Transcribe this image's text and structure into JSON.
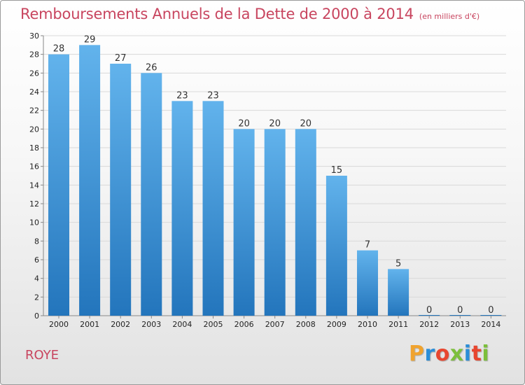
{
  "title": "Remboursements Annuels de la Dette de 2000 à 2014",
  "title_unit": "(en milliers d'€)",
  "city": "ROYE",
  "logo": {
    "text": "Proxiti",
    "letter_colors": [
      "#f0a32e",
      "#2b8ed8",
      "#e8462f",
      "#7cbf3b",
      "#2b8ed8",
      "#e8462f",
      "#7cbf3b"
    ]
  },
  "colors": {
    "title": "#c8455f",
    "bar_top": "#62b3ec",
    "bar_bottom": "#2375bc",
    "grid": "#d9d9d9",
    "axis_text": "#222222"
  },
  "chart_data": {
    "type": "bar",
    "categories": [
      "2000",
      "2001",
      "2002",
      "2003",
      "2004",
      "2005",
      "2006",
      "2007",
      "2008",
      "2009",
      "2010",
      "2011",
      "2012",
      "2013",
      "2014"
    ],
    "values": [
      28,
      29,
      27,
      26,
      23,
      23,
      20,
      20,
      20,
      15,
      7,
      5,
      0,
      0,
      0
    ],
    "title": "Remboursements Annuels de la Dette de 2000 à 2014",
    "xlabel": "",
    "ylabel": "",
    "ylim": [
      0,
      30
    ],
    "yticks": [
      0,
      2,
      4,
      6,
      8,
      10,
      12,
      14,
      16,
      18,
      20,
      22,
      24,
      26,
      28,
      30
    ],
    "grid": true
  }
}
